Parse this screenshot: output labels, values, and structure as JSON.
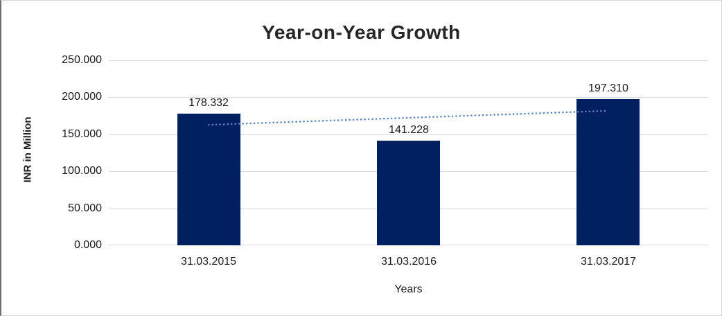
{
  "chart_data": {
    "type": "bar",
    "title": "Year-on-Year Growth",
    "xlabel": "Years",
    "ylabel": "INR in Million",
    "categories": [
      "31.03.2015",
      "31.03.2016",
      "31.03.2017"
    ],
    "values": [
      178.332,
      141.228,
      197.31
    ],
    "value_labels": [
      "178.332",
      "141.228",
      "197.310"
    ],
    "ytick_labels": [
      "250.000",
      "200.000",
      "150.000",
      "100.000",
      "50.000",
      "0.000"
    ],
    "ylim": [
      0,
      250
    ],
    "grid": true,
    "legend": "none",
    "bar_color": "#002060",
    "gridline_color": "#d9d9d9",
    "trendline": {
      "type": "linear",
      "style": "dotted",
      "color": "#5585c6",
      "start_value": 162.8,
      "end_value": 181.8
    }
  }
}
